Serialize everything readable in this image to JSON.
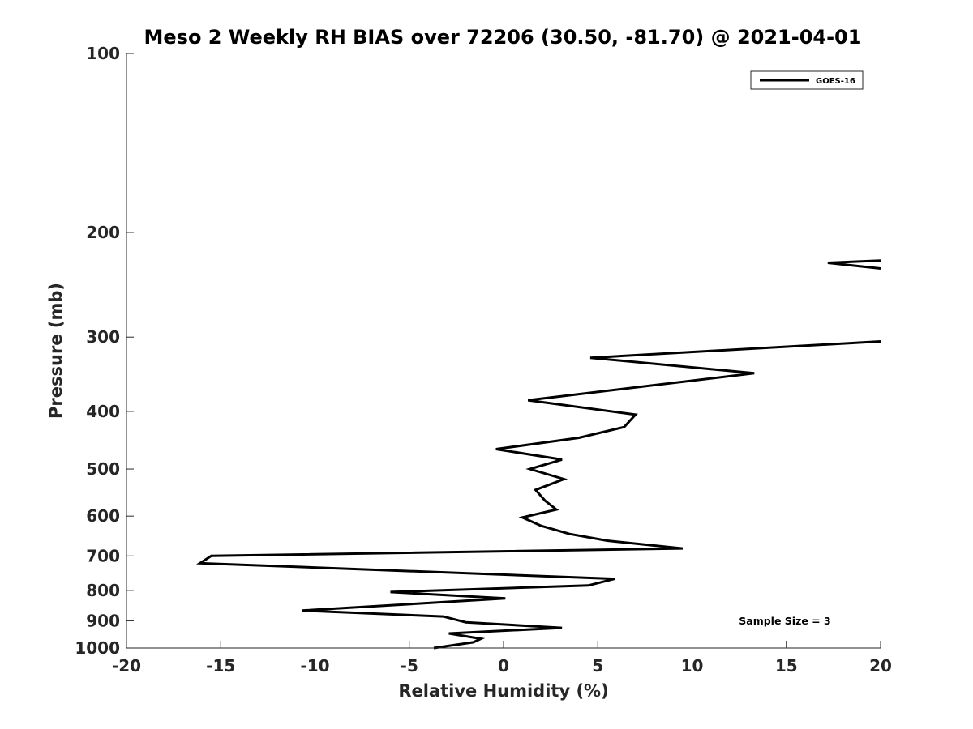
{
  "chart_data": {
    "type": "line",
    "title": "Meso 2 Weekly RH BIAS over 72206 (30.50, -81.70) @ 2021-04-01",
    "xlabel": "Relative Humidity (%)",
    "ylabel": "Pressure (mb)",
    "xlim": [
      -20,
      20
    ],
    "ylim": [
      100,
      1000
    ],
    "y_scale": "log",
    "y_reversed": true,
    "grid": false,
    "legend_position": "top-right",
    "x_ticks": [
      "-20",
      "-15",
      "-10",
      "-5",
      "0",
      "5",
      "10",
      "15",
      "20"
    ],
    "y_ticks": [
      "100",
      "200",
      "300",
      "400",
      "500",
      "600",
      "700",
      "800",
      "900",
      "1000"
    ],
    "series": [
      {
        "name": "GOES-16",
        "color": "#000000",
        "segments": [
          [
            {
              "x": 20.0,
              "y": 223
            },
            {
              "x": 17.2,
              "y": 225
            },
            {
              "x": 20.0,
              "y": 230
            }
          ],
          [
            {
              "x": 20.0,
              "y": 305
            },
            {
              "x": 4.6,
              "y": 325
            },
            {
              "x": 13.3,
              "y": 345
            },
            {
              "x": 1.3,
              "y": 383
            },
            {
              "x": 7.0,
              "y": 405
            },
            {
              "x": 6.4,
              "y": 425
            },
            {
              "x": 4.0,
              "y": 443
            },
            {
              "x": -0.4,
              "y": 463
            },
            {
              "x": 3.1,
              "y": 482
            },
            {
              "x": 1.4,
              "y": 500
            },
            {
              "x": 3.2,
              "y": 520
            },
            {
              "x": 1.7,
              "y": 542
            },
            {
              "x": 2.2,
              "y": 565
            },
            {
              "x": 2.8,
              "y": 585
            },
            {
              "x": 1.0,
              "y": 603
            },
            {
              "x": 2.0,
              "y": 623
            },
            {
              "x": 3.5,
              "y": 643
            },
            {
              "x": 5.5,
              "y": 660
            },
            {
              "x": 9.5,
              "y": 680
            },
            {
              "x": -15.5,
              "y": 700
            },
            {
              "x": -16.1,
              "y": 720
            },
            {
              "x": 5.9,
              "y": 765
            },
            {
              "x": 4.5,
              "y": 785
            },
            {
              "x": -6.0,
              "y": 805
            },
            {
              "x": 0.1,
              "y": 825
            },
            {
              "x": -10.7,
              "y": 865
            },
            {
              "x": -3.2,
              "y": 885
            },
            {
              "x": -2.0,
              "y": 905
            },
            {
              "x": 3.1,
              "y": 925
            },
            {
              "x": -2.9,
              "y": 945
            },
            {
              "x": -1.2,
              "y": 965
            },
            {
              "x": -1.6,
              "y": 978
            },
            {
              "x": -3.7,
              "y": 1000
            }
          ]
        ]
      }
    ],
    "annotation": "Sample Size = 3"
  }
}
